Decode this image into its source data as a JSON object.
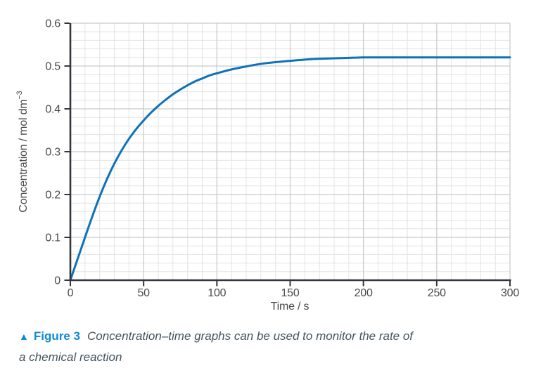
{
  "figure": {
    "marker": "▲",
    "label": "Figure 3",
    "caption_line1": "Concentration–time graphs can be used to monitor the rate of",
    "caption_line2": "a chemical reaction"
  },
  "chart_data": {
    "type": "line",
    "title": "",
    "xlabel": "Time / s",
    "ylabel": "Concentration / mol dm−3",
    "ylabel_base": "Concentration / mol dm",
    "ylabel_sup": "−3",
    "xlim": [
      0,
      300
    ],
    "ylim": [
      0,
      0.6
    ],
    "x_ticks": [
      0,
      50,
      100,
      150,
      200,
      250,
      300
    ],
    "y_ticks": [
      0,
      0.1,
      0.2,
      0.3,
      0.4,
      0.5,
      0.6
    ],
    "x_minor_step": 10,
    "y_minor_step": 0.02,
    "grid": true,
    "legend": false,
    "plateau_value": 0.52,
    "series": [
      {
        "name": "concentration",
        "points": [
          [
            0,
            0
          ],
          [
            5,
            0.05
          ],
          [
            10,
            0.1
          ],
          [
            15,
            0.149
          ],
          [
            20,
            0.195
          ],
          [
            25,
            0.236
          ],
          [
            30,
            0.272
          ],
          [
            35,
            0.303
          ],
          [
            40,
            0.33
          ],
          [
            45,
            0.353
          ],
          [
            50,
            0.373
          ],
          [
            55,
            0.391
          ],
          [
            60,
            0.407
          ],
          [
            65,
            0.421
          ],
          [
            70,
            0.434
          ],
          [
            75,
            0.445
          ],
          [
            80,
            0.455
          ],
          [
            85,
            0.464
          ],
          [
            90,
            0.471
          ],
          [
            95,
            0.478
          ],
          [
            100,
            0.483
          ],
          [
            110,
            0.492
          ],
          [
            120,
            0.499
          ],
          [
            130,
            0.505
          ],
          [
            140,
            0.509
          ],
          [
            150,
            0.512
          ],
          [
            160,
            0.515
          ],
          [
            170,
            0.517
          ],
          [
            180,
            0.518
          ],
          [
            190,
            0.519
          ],
          [
            200,
            0.52
          ],
          [
            220,
            0.52
          ],
          [
            240,
            0.52
          ],
          [
            260,
            0.52
          ],
          [
            280,
            0.52
          ],
          [
            300,
            0.52
          ]
        ]
      }
    ]
  },
  "colors": {
    "curve_blue": "#0e72b8",
    "figure_blue": "#0e8ad6",
    "caption_text": "#44535c",
    "axis": "#35353e",
    "tick_label": "#4a4a4a",
    "grid_minor": "#e3e3e3",
    "grid_major": "#c9c9c9",
    "background": "#ffffff"
  }
}
